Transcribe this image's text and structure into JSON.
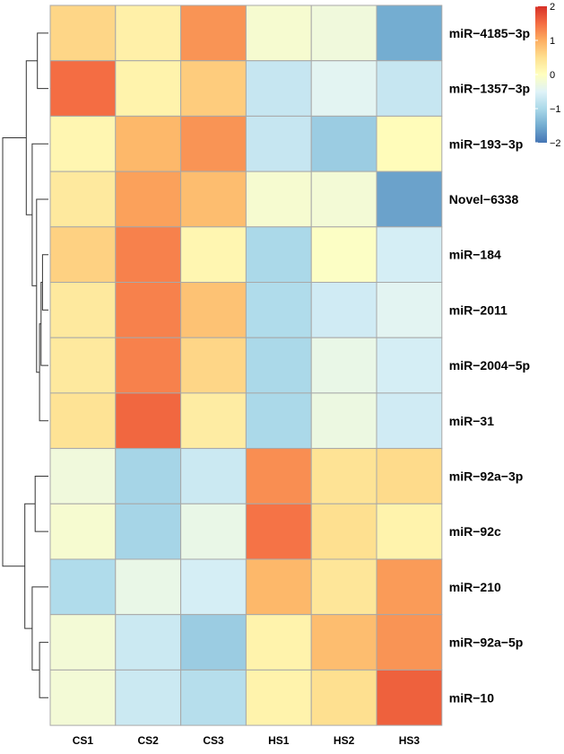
{
  "chart_data": {
    "type": "heatmap",
    "title": "",
    "columns": [
      "CS1",
      "CS2",
      "CS3",
      "HS1",
      "HS2",
      "HS3"
    ],
    "rows": [
      "miR−4185−3p",
      "miR−1357−3p",
      "miR−193−3p",
      "Novel−6338",
      "miR−184",
      "miR−2011",
      "miR−2004−5p",
      "miR−31",
      "miR−92a−3p",
      "miR−92c",
      "miR−210",
      "miR−92a−5p",
      "miR−10"
    ],
    "values": [
      [
        0.6,
        0.25,
        1.2,
        -0.15,
        -0.25,
        -1.5
      ],
      [
        1.5,
        0.2,
        0.7,
        -0.75,
        -0.45,
        -0.75
      ],
      [
        0.15,
        0.9,
        1.2,
        -0.75,
        -1.15,
        0.05
      ],
      [
        0.35,
        1.1,
        0.85,
        -0.15,
        -0.2,
        -1.6
      ],
      [
        0.65,
        1.35,
        0.15,
        -1.0,
        -0.05,
        -0.6
      ],
      [
        0.35,
        1.35,
        0.8,
        -0.95,
        -0.65,
        -0.45
      ],
      [
        0.35,
        1.35,
        0.6,
        -1.0,
        -0.35,
        -0.6
      ],
      [
        0.45,
        1.55,
        0.3,
        -1.0,
        -0.3,
        -0.65
      ],
      [
        -0.25,
        -1.05,
        -0.7,
        1.25,
        0.45,
        0.55
      ],
      [
        -0.15,
        -1.05,
        -0.35,
        1.45,
        0.5,
        0.2
      ],
      [
        -0.95,
        -0.35,
        -0.6,
        0.9,
        0.4,
        1.15
      ],
      [
        -0.2,
        -0.7,
        -1.15,
        0.2,
        0.85,
        1.2
      ],
      [
        -0.2,
        -0.7,
        -0.9,
        0.2,
        0.5,
        1.6
      ]
    ],
    "color_scale": {
      "min": -2,
      "max": 2,
      "ticks": [
        "2",
        "1",
        "0",
        "−1",
        "−2"
      ],
      "tick_values": [
        2,
        1,
        0,
        -1,
        -2
      ],
      "stops": [
        "#4575b4",
        "#74add1",
        "#abd9e9",
        "#e0f3f8",
        "#ffffbf",
        "#fee090",
        "#fdae61",
        "#f46d43",
        "#d73027"
      ]
    },
    "row_dendrogram": [
      [
        0,
        1,
        1.5
      ],
      [
        4,
        5,
        0.8
      ],
      [
        14,
        6,
        1.0
      ],
      [
        15,
        7,
        1.2
      ],
      [
        16,
        3,
        1.6
      ],
      [
        17,
        2,
        2.2
      ],
      [
        13,
        18,
        3.0
      ],
      [
        8,
        9,
        1.8
      ],
      [
        11,
        12,
        1.2
      ],
      [
        10,
        21,
        2.2
      ],
      [
        20,
        22,
        3.2
      ],
      [
        19,
        23,
        6.2
      ]
    ],
    "legend_position": "top-right"
  }
}
